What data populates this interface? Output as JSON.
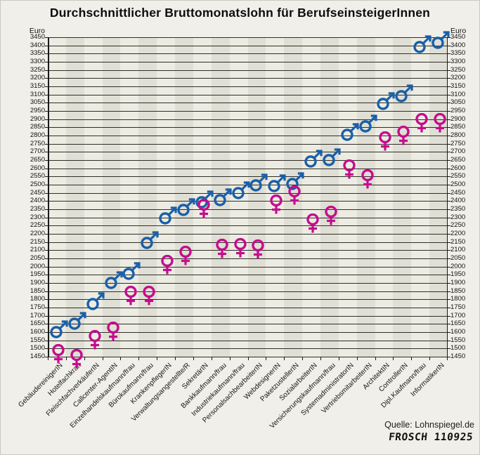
{
  "title": "Durchschnittlicher Bruttomonatslohn für BerufseinsteigerInnen",
  "axis": {
    "unit_label": "Euro",
    "y_tick_labels": [
      "3450",
      "3400",
      "3350",
      "3300",
      "3250",
      "3200",
      "3150",
      "3100",
      "3050",
      "2950",
      "2900",
      "2850",
      "2800",
      "2750",
      "2700",
      "2650",
      "2600",
      "2550",
      "2500",
      "2450",
      "2400",
      "2350",
      "2300",
      "2250",
      "2200",
      "2150",
      "2100",
      "2050",
      "2000",
      "1950",
      "1900",
      "1850",
      "1800",
      "1750",
      "1700",
      "1650",
      "1600",
      "1550",
      "1500",
      "1450"
    ]
  },
  "source": "Quelle: Lohnspiegel.de",
  "signature": "FROSCH 110925",
  "colors": {
    "male": "#1a5fa8",
    "female": "#c40d8c",
    "stripe_light": "#edece3",
    "stripe_dark": "#e0dfd5",
    "gridline": "#2e2d29"
  },
  "chart_data": {
    "type": "scatter",
    "title": "Durchschnittlicher Bruttomonatslohn für BerufseinsteigerInnen",
    "ylabel": "Euro",
    "ylim": [
      1450,
      3450
    ],
    "y_tick_step": 50,
    "y_tick_3000_missing": true,
    "grid": true,
    "categories": [
      "GebäudereinigerIN",
      "Hotelfachkraft",
      "FleischfachverkäuferIN",
      "Callcenter-AgentIN",
      "Einzelhandelskaufmann/frau",
      "Bürokaufmann/frau",
      "KrankenpflegerIN",
      "Verwaltungsangestellte/R",
      "SekretärIN",
      "Bankkaufmann/frau",
      "Industriekaufmann/frau",
      "PersonalsachbearbeiterIN",
      "WebdesignerIN",
      "PaketzustellerIN",
      "SozialarbeiterIN",
      "Versicherungskaufmann/frau",
      "SystemadministratorIN",
      "VertriebsmitarbeiterIN",
      "ArchitektIN",
      "ControllerIN",
      "Dipl.Kaufmann/frau",
      "InformatikerIN"
    ],
    "series": [
      {
        "name": "Männer",
        "symbol": "mars",
        "color": "#1a5fa8",
        "values": [
          1600,
          1650,
          1770,
          1900,
          1955,
          2145,
          2295,
          2345,
          2395,
          2405,
          2450,
          2495,
          2490,
          2505,
          2640,
          2650,
          2805,
          2855,
          3040,
          3090,
          3390,
          3415
        ]
      },
      {
        "name": "Frauen",
        "symbol": "venus",
        "color": "#c40d8c",
        "values": [
          1490,
          1460,
          1575,
          1630,
          1845,
          1845,
          2035,
          2090,
          2380,
          2135,
          2140,
          2130,
          2405,
          2460,
          2290,
          2335,
          2620,
          2560,
          2790,
          2825,
          2900,
          2900
        ]
      }
    ]
  }
}
